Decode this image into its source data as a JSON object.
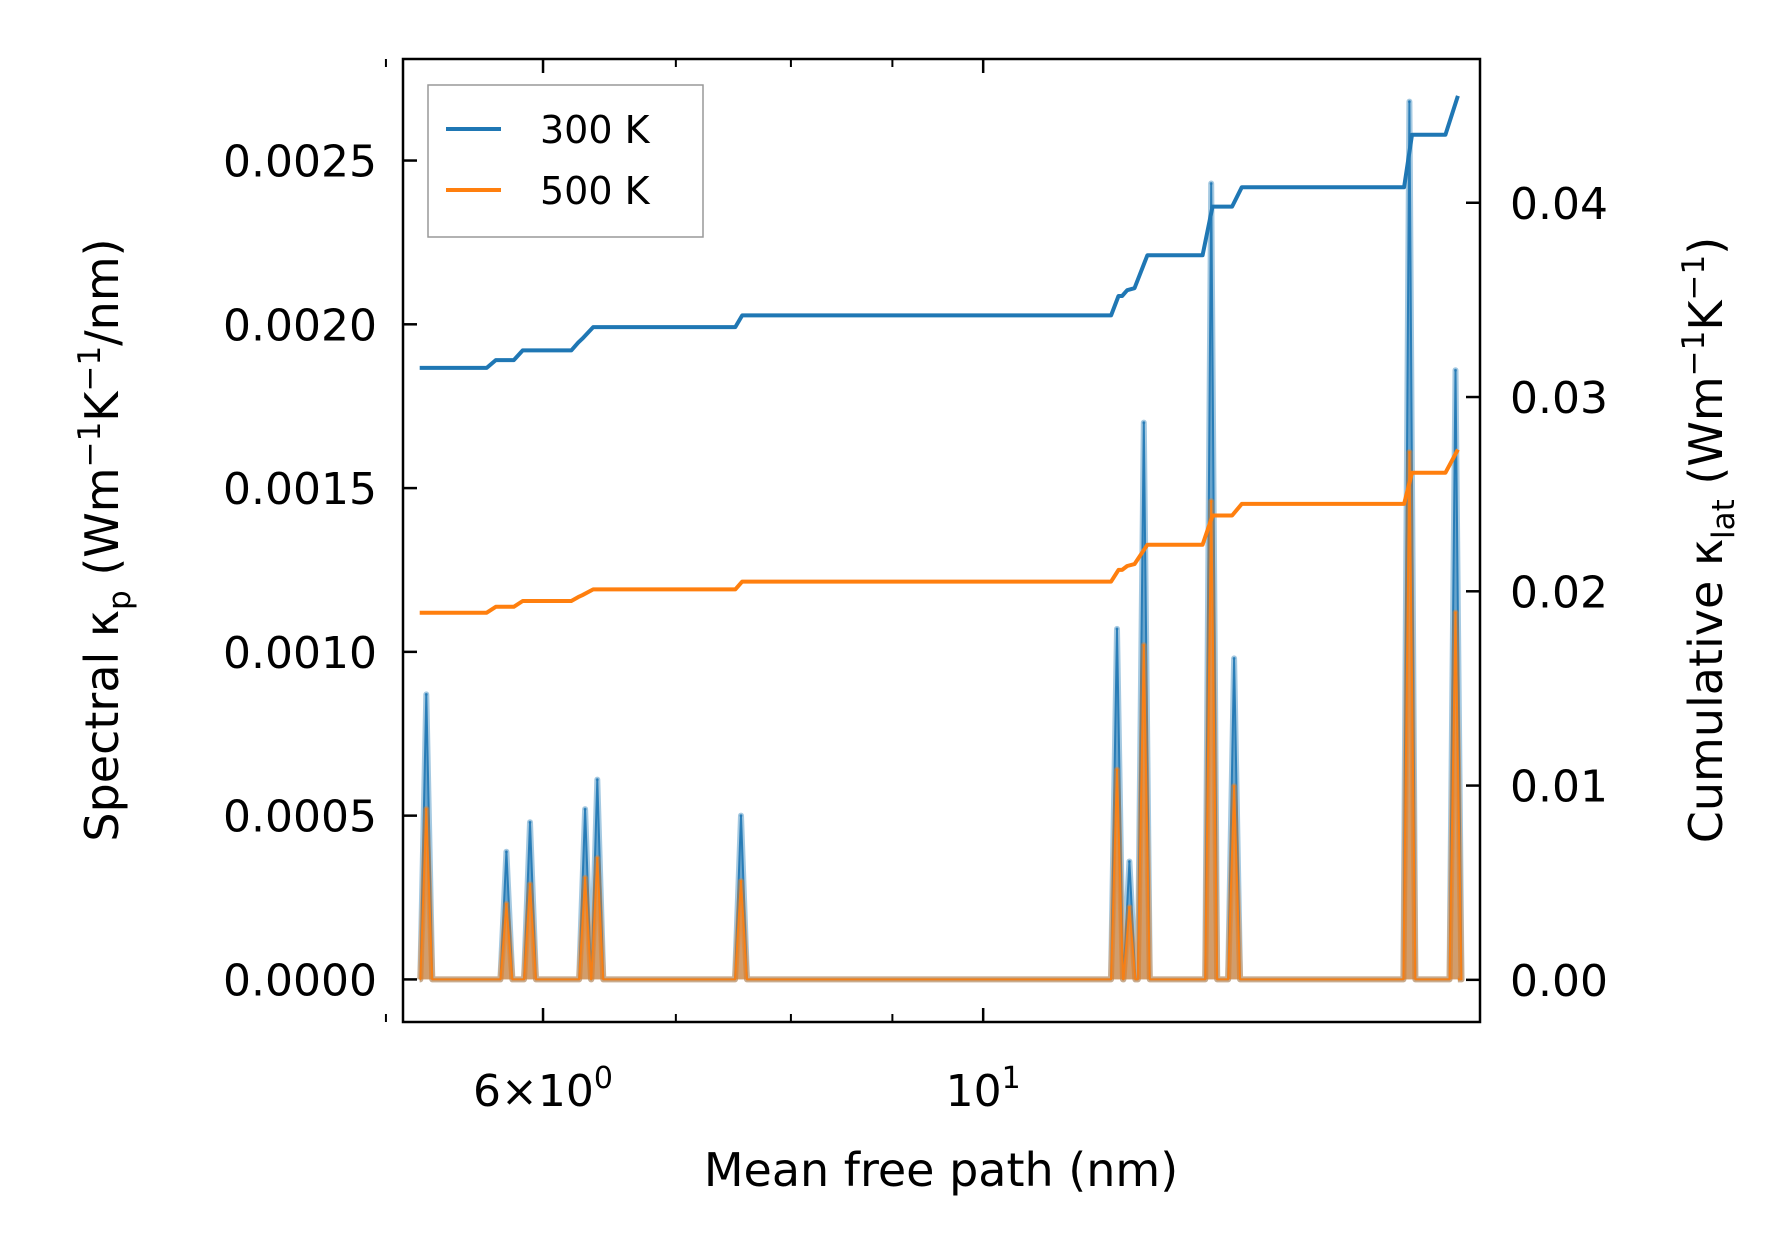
{
  "chart_data": {
    "type": "line",
    "xlabel": "Mean free path (nm)",
    "ylabel_left": {
      "main": "Spectral κ",
      "sub": "p",
      "unit_pre": " (Wm",
      "exp1": "−1",
      "mid": "K",
      "exp2": "−1",
      "unit_post": "/nm)"
    },
    "ylabel_right": {
      "main": "Cumulative κ",
      "sub": "lat",
      "unit_pre": " (Wm",
      "exp1": "−1",
      "mid": "K",
      "exp2": "−1",
      "unit_post": ")"
    },
    "x_scale": "log",
    "xlim": [
      5.1,
      17.8
    ],
    "ylim_left": [
      -0.00013,
      0.00281
    ],
    "ylim_right": [
      -0.00217,
      0.0474
    ],
    "x_major_ticks": [
      {
        "value": 6,
        "base": "6×10",
        "exp": "0"
      },
      {
        "value": 10,
        "base": "10",
        "exp": "1"
      }
    ],
    "x_minor_ticks": [
      5.0,
      6.0,
      7.0,
      8.0,
      9.0
    ],
    "y_left_ticks": [
      "0.0000",
      "0.0005",
      "0.0010",
      "0.0015",
      "0.0020",
      "0.0025"
    ],
    "y_left_tick_values": [
      0,
      0.0005,
      0.001,
      0.0015,
      0.002,
      0.0025
    ],
    "y_right_ticks": [
      "0.00",
      "0.01",
      "0.02",
      "0.03",
      "0.04"
    ],
    "y_right_tick_values": [
      0,
      0.01,
      0.02,
      0.03,
      0.04
    ],
    "legend": {
      "position": "top-left",
      "entries": [
        "300 K",
        "500 K"
      ]
    },
    "colors": {
      "300 K": "#1f77b4",
      "500 K": "#ff7f0e"
    },
    "series": [
      {
        "name": "300 K",
        "axis": "right",
        "cumulative": [
          [
            5.2,
            0.0315
          ],
          [
            5.62,
            0.0315
          ],
          [
            5.68,
            0.0319
          ],
          [
            5.8,
            0.0319
          ],
          [
            5.86,
            0.0324
          ],
          [
            6.2,
            0.0324
          ],
          [
            6.25,
            0.0328
          ],
          [
            6.28,
            0.033
          ],
          [
            6.36,
            0.0336
          ],
          [
            7.5,
            0.0336
          ],
          [
            7.56,
            0.0342
          ],
          [
            11.6,
            0.0342
          ],
          [
            11.7,
            0.0352
          ],
          [
            11.75,
            0.0352
          ],
          [
            11.82,
            0.0355
          ],
          [
            11.92,
            0.0356
          ],
          [
            12.1,
            0.0373
          ],
          [
            12.9,
            0.0373
          ],
          [
            13.05,
            0.0398
          ],
          [
            13.35,
            0.0398
          ],
          [
            13.5,
            0.0408
          ],
          [
            16.3,
            0.0408
          ],
          [
            16.45,
            0.0435
          ],
          [
            17.1,
            0.0435
          ],
          [
            17.35,
            0.0455
          ]
        ],
        "spectral_peaks": [
          [
            5.24,
            0.00087
          ],
          [
            5.75,
            0.00039
          ],
          [
            5.91,
            0.00048
          ],
          [
            6.3,
            0.00052
          ],
          [
            6.39,
            0.00061
          ],
          [
            7.55,
            0.0005
          ],
          [
            11.68,
            0.00107
          ],
          [
            11.85,
            0.00036
          ],
          [
            12.05,
            0.0017
          ],
          [
            13.03,
            0.00243
          ],
          [
            13.38,
            0.00098
          ],
          [
            16.4,
            0.00268
          ],
          [
            17.3,
            0.00186
          ]
        ]
      },
      {
        "name": "500 K",
        "axis": "right",
        "cumulative": [
          [
            5.2,
            0.0189
          ],
          [
            5.62,
            0.0189
          ],
          [
            5.68,
            0.0192
          ],
          [
            5.8,
            0.0192
          ],
          [
            5.86,
            0.0195
          ],
          [
            6.2,
            0.0195
          ],
          [
            6.25,
            0.0197
          ],
          [
            6.28,
            0.0198
          ],
          [
            6.36,
            0.0201
          ],
          [
            7.5,
            0.0201
          ],
          [
            7.56,
            0.0205
          ],
          [
            11.6,
            0.0205
          ],
          [
            11.7,
            0.0211
          ],
          [
            11.75,
            0.0211
          ],
          [
            11.82,
            0.0213
          ],
          [
            11.92,
            0.0214
          ],
          [
            12.1,
            0.0224
          ],
          [
            12.9,
            0.0224
          ],
          [
            13.05,
            0.0239
          ],
          [
            13.35,
            0.0239
          ],
          [
            13.5,
            0.0245
          ],
          [
            16.3,
            0.0245
          ],
          [
            16.45,
            0.0261
          ],
          [
            17.1,
            0.0261
          ],
          [
            17.35,
            0.0273
          ]
        ],
        "spectral_peaks": [
          [
            5.24,
            0.00052
          ],
          [
            5.75,
            0.00023
          ],
          [
            5.91,
            0.00029
          ],
          [
            6.3,
            0.00031
          ],
          [
            6.39,
            0.00037
          ],
          [
            7.55,
            0.0003
          ],
          [
            11.68,
            0.00064
          ],
          [
            11.85,
            0.00022
          ],
          [
            12.05,
            0.00102
          ],
          [
            13.03,
            0.00146
          ],
          [
            13.38,
            0.00059
          ],
          [
            16.4,
            0.00161
          ],
          [
            17.3,
            0.00112
          ]
        ]
      }
    ],
    "spectral_x_range": [
      5.2,
      17.35
    ]
  }
}
